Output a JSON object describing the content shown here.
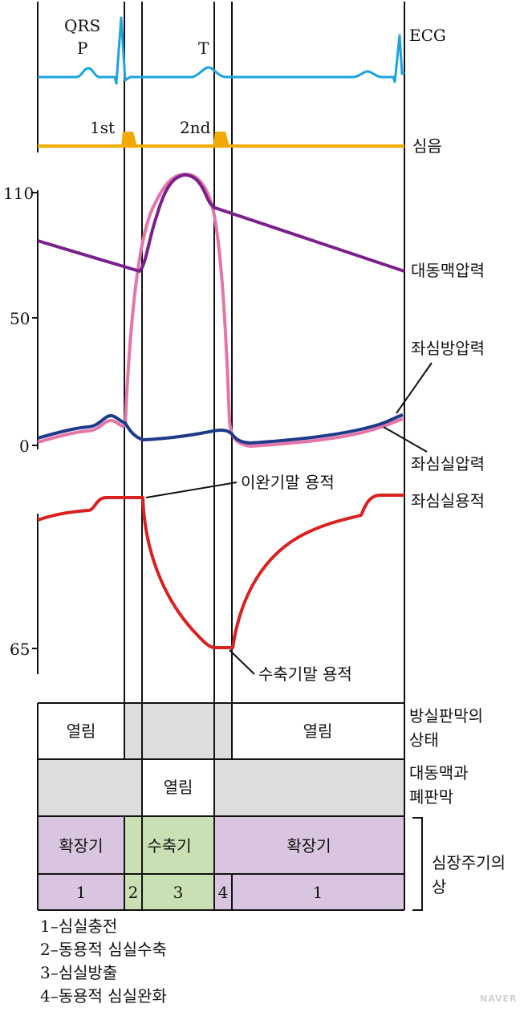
{
  "ecg": {
    "label": "ECG",
    "wave_labels": {
      "qrs": "QRS",
      "p": "P",
      "t": "T"
    },
    "color": "#1ca3dc"
  },
  "heart_sound": {
    "label": "심음",
    "first": "1st",
    "second": "2nd",
    "color": "#f2aa00"
  },
  "pressure_axis": {
    "ticks": [
      "110",
      "50",
      "0"
    ]
  },
  "volume_axis": {
    "ticks": [
      "65"
    ]
  },
  "curves": {
    "aortic_pressure": {
      "label": "대동맥압력",
      "color": "#7b1f8c"
    },
    "atrial_pressure": {
      "label": "좌심방압력",
      "color": "#1e3a8a"
    },
    "ventricular_pressure": {
      "label": "좌심실압력",
      "color": "#e575a8"
    },
    "ventricular_volume": {
      "label": "좌심실용적",
      "color": "#d9211f"
    }
  },
  "annotations": {
    "end_diastolic_volume": "이완기말 용적",
    "end_systolic_volume": "수축기말 용적"
  },
  "valves": {
    "av_valve": {
      "label_line1": "방실판막의",
      "label_line2": "상태",
      "open_left": "열림",
      "open_right": "열림"
    },
    "semilunar_valve": {
      "label_line1": "대동맥과",
      "label_line2": "폐판막",
      "open": "열림"
    }
  },
  "phases": {
    "label_line1": "심장주기의",
    "label_line2": "상",
    "diastole_left": "확장기",
    "systole": "수축기",
    "diastole_right": "확장기",
    "numbers": [
      "1",
      "2",
      "3",
      "4",
      "1"
    ],
    "colors": {
      "diastole": "#d9c5df",
      "systole": "#c8e0b4",
      "closed": "#dddddd"
    }
  },
  "legend": [
    "1–심실충전",
    "2–동용적 심실수축",
    "3–심실방출",
    "4–동용적 심실완화"
  ],
  "watermark": "NAVER"
}
